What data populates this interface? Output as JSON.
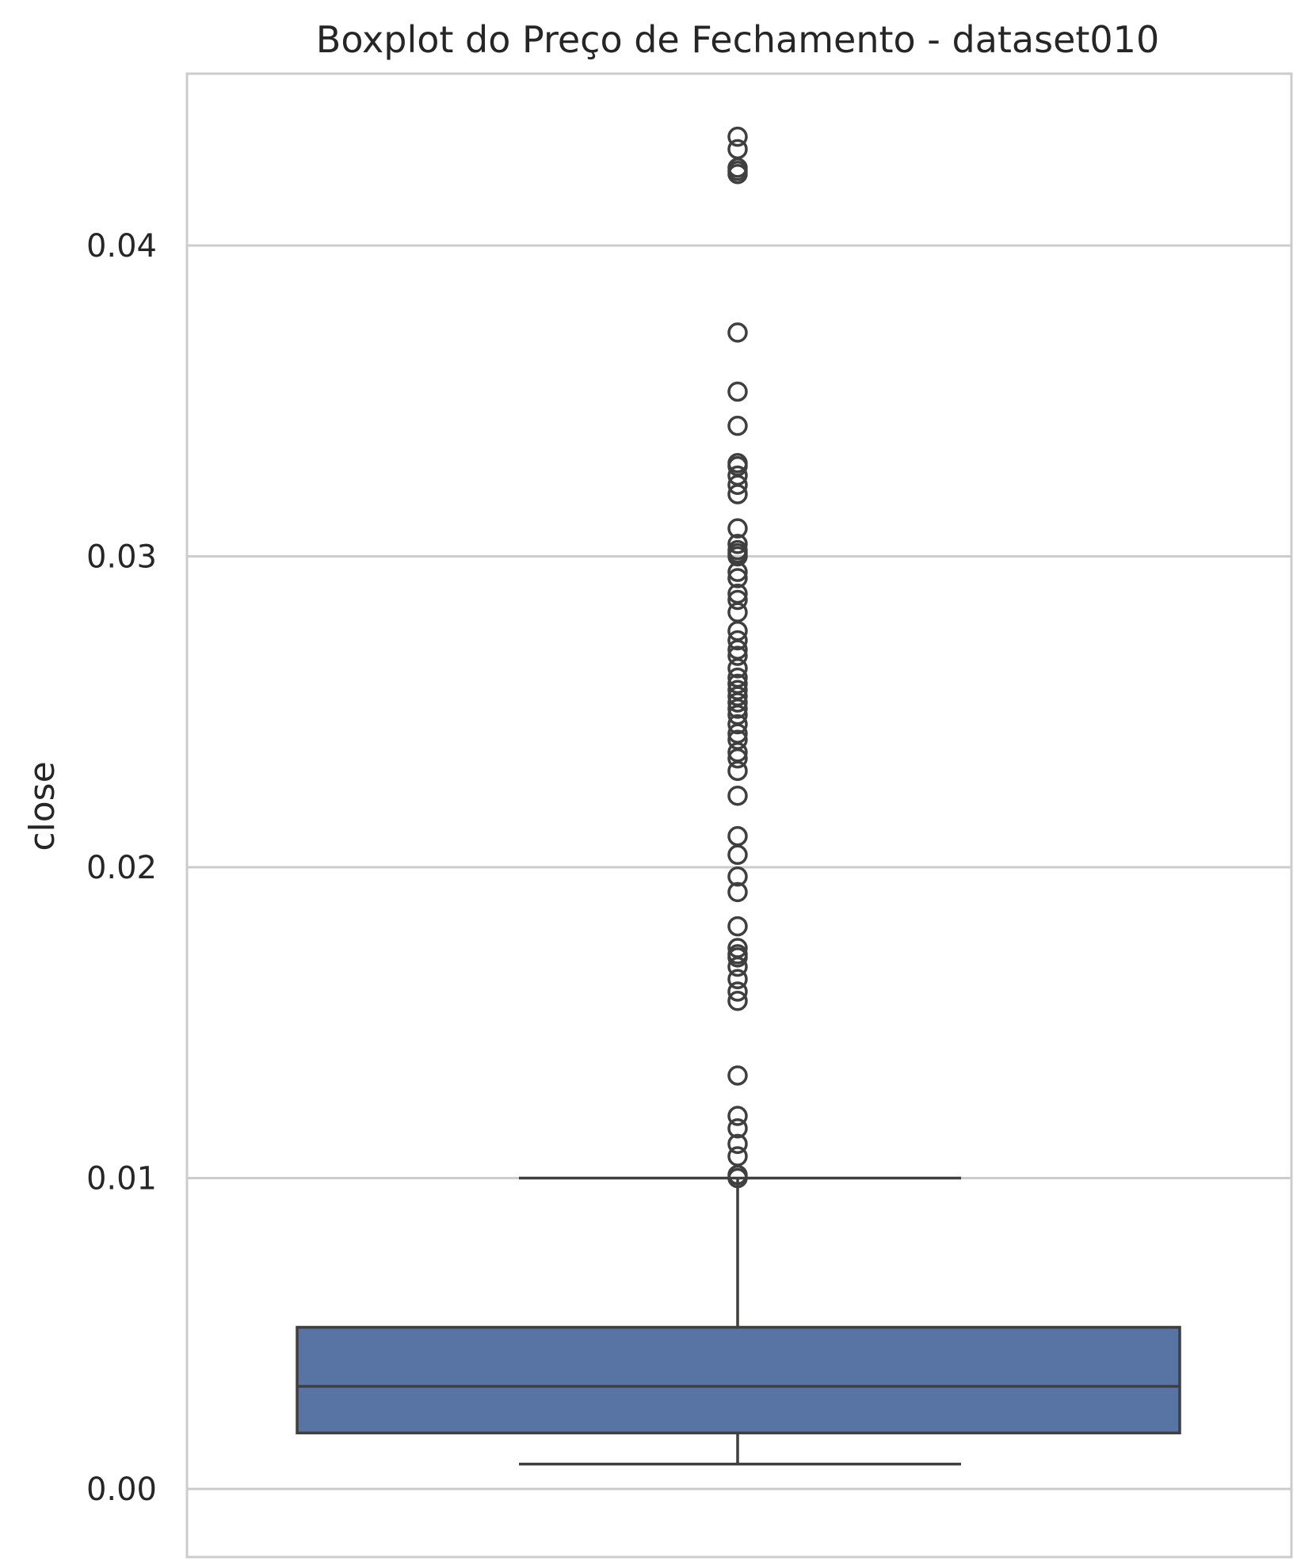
{
  "chart_data": {
    "type": "boxplot",
    "title": "Boxplot do Preço de Fechamento - dataset010",
    "xlabel": "",
    "ylabel": "close",
    "ylim": [
      -0.0005,
      0.0453
    ],
    "yticks": [
      0.0,
      0.01,
      0.02,
      0.03,
      0.04
    ],
    "ytick_labels": [
      "0.00",
      "0.01",
      "0.02",
      "0.03",
      "0.04"
    ],
    "grid": "horizontal",
    "box_color": "#5874a5",
    "line_color": "#3f3f3f",
    "grid_color": "#cccccc",
    "stats": {
      "whisker_low": 0.0008,
      "q1": 0.0018,
      "median": 0.0033,
      "q3": 0.0052,
      "whisker_high": 0.01
    },
    "outliers": [
      0.0435,
      0.0431,
      0.0425,
      0.0424,
      0.0423,
      0.0372,
      0.0353,
      0.0342,
      0.033,
      0.0329,
      0.0326,
      0.0323,
      0.032,
      0.0309,
      0.0304,
      0.0302,
      0.0301,
      0.03,
      0.0295,
      0.0293,
      0.0288,
      0.0286,
      0.0282,
      0.0276,
      0.0273,
      0.027,
      0.0268,
      0.0264,
      0.0261,
      0.0259,
      0.0257,
      0.0255,
      0.0253,
      0.0251,
      0.0249,
      0.0246,
      0.0243,
      0.0241,
      0.0237,
      0.0235,
      0.0231,
      0.0223,
      0.021,
      0.0204,
      0.0197,
      0.0192,
      0.0181,
      0.0174,
      0.0172,
      0.0171,
      0.0168,
      0.0164,
      0.016,
      0.0157,
      0.0133,
      0.012,
      0.0116,
      0.0111,
      0.0107,
      0.0101,
      0.01
    ]
  }
}
